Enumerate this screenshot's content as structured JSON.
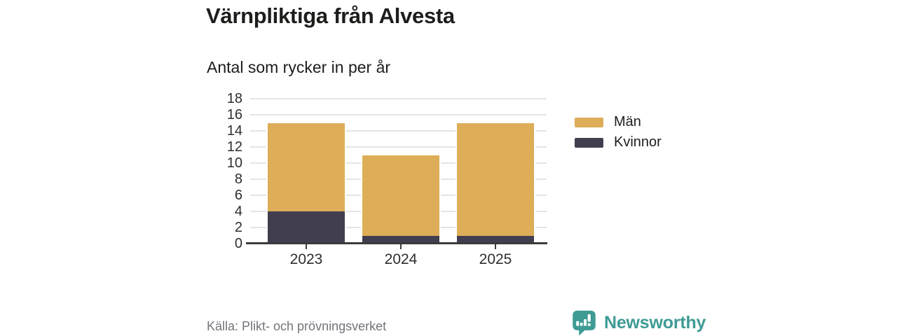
{
  "header": {
    "title": "Värnpliktiga från Alvesta",
    "subtitle": "Antal som rycker in per år"
  },
  "chart_data": {
    "type": "bar",
    "stacked": true,
    "title": "Värnpliktiga från Alvesta",
    "subtitle": "Antal som rycker in per år",
    "categories": [
      "2023",
      "2024",
      "2025"
    ],
    "series": [
      {
        "name": "Kvinnor",
        "color": "#413e4f",
        "values": [
          4,
          1,
          1
        ]
      },
      {
        "name": "Män",
        "color": "#ddad58",
        "values": [
          11,
          10,
          14
        ]
      }
    ],
    "totals": [
      15,
      11,
      15
    ],
    "ylim": [
      0,
      18
    ],
    "yticks": [
      0,
      2,
      4,
      6,
      8,
      10,
      12,
      14,
      16,
      18
    ],
    "xlabel": "",
    "ylabel": "",
    "grid": true,
    "legend_position": "right",
    "legend": [
      {
        "label": "Män",
        "color": "#ddad58"
      },
      {
        "label": "Kvinnor",
        "color": "#413e4f"
      }
    ]
  },
  "footer": {
    "source": "Källa: Plikt- och prövningsverket",
    "brand": "Newsworthy",
    "brand_color": "#3e9b94"
  }
}
